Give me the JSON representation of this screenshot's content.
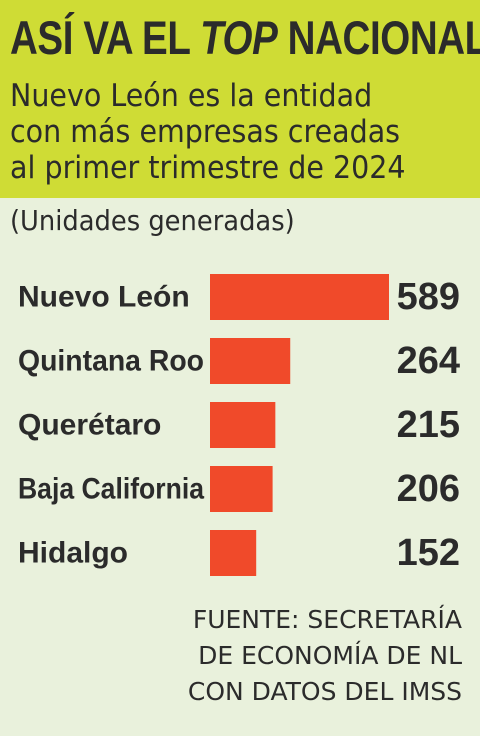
{
  "header": {
    "title_part1": "ASÍ VA EL ",
    "title_italic": "TOP",
    "title_part2": " NACIONAL",
    "subtitle_lines": [
      "Nuevo León es la entidad",
      "con más empresas creadas",
      "al primer trimestre de 2024"
    ]
  },
  "units": "(Unidades generadas)",
  "source_lines": [
    "FUENTE: SECRETARÍA",
    "DE ECONOMÍA DE NL",
    "CON DATOS DEL IMSS"
  ],
  "colors": {
    "header_bg": "#cfdc35",
    "page_bg": "#e9f1dc",
    "bar": "#f04a2a",
    "text": "#2b2b2b"
  },
  "chart_data": {
    "type": "bar",
    "orientation": "horizontal",
    "categories": [
      "Nuevo León",
      "Quintana Roo",
      "Querétaro",
      "Baja California",
      "Hidalgo"
    ],
    "values": [
      589,
      264,
      215,
      206,
      152
    ],
    "title": "",
    "xlabel": "",
    "ylabel": "",
    "grid": false,
    "legend": "none"
  }
}
